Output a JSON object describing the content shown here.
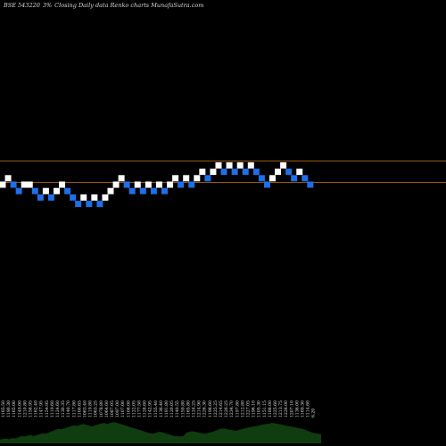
{
  "header": {
    "code": "BSE 543220",
    "box_size": "3%",
    "rest": "Closing Daily data  Renko  charts MunafaSutra.com"
  },
  "colors": {
    "background": "#000000",
    "up_brick": "#ffffff",
    "down_brick": "#1e6fe8",
    "reference_line": "#c8761e",
    "volume": "#0f3d0f"
  },
  "chart_data": {
    "type": "renko",
    "reference_levels": [
      1,
      0
    ],
    "bricks": [
      {
        "dir": "up",
        "level": 0
      },
      {
        "dir": "up",
        "level": 1
      },
      {
        "dir": "down",
        "level": 0
      },
      {
        "dir": "down",
        "level": -1
      },
      {
        "dir": "up",
        "level": 0
      },
      {
        "dir": "up",
        "level": 0
      },
      {
        "dir": "down",
        "level": -1
      },
      {
        "dir": "down",
        "level": -2
      },
      {
        "dir": "up",
        "level": -1
      },
      {
        "dir": "down",
        "level": -2
      },
      {
        "dir": "up",
        "level": -1
      },
      {
        "dir": "up",
        "level": 0
      },
      {
        "dir": "down",
        "level": -1
      },
      {
        "dir": "down",
        "level": -2
      },
      {
        "dir": "down",
        "level": -3
      },
      {
        "dir": "up",
        "level": -2
      },
      {
        "dir": "down",
        "level": -3
      },
      {
        "dir": "up",
        "level": -2
      },
      {
        "dir": "down",
        "level": -3
      },
      {
        "dir": "up",
        "level": -2
      },
      {
        "dir": "up",
        "level": -1
      },
      {
        "dir": "up",
        "level": 0
      },
      {
        "dir": "up",
        "level": 1
      },
      {
        "dir": "down",
        "level": 0
      },
      {
        "dir": "down",
        "level": -1
      },
      {
        "dir": "up",
        "level": 0
      },
      {
        "dir": "down",
        "level": -1
      },
      {
        "dir": "up",
        "level": 0
      },
      {
        "dir": "down",
        "level": -1
      },
      {
        "dir": "up",
        "level": 0
      },
      {
        "dir": "down",
        "level": -1
      },
      {
        "dir": "up",
        "level": 0
      },
      {
        "dir": "up",
        "level": 1
      },
      {
        "dir": "down",
        "level": 0
      },
      {
        "dir": "up",
        "level": 1
      },
      {
        "dir": "down",
        "level": 0
      },
      {
        "dir": "up",
        "level": 1
      },
      {
        "dir": "up",
        "level": 2
      },
      {
        "dir": "down",
        "level": 1
      },
      {
        "dir": "up",
        "level": 2
      },
      {
        "dir": "up",
        "level": 3
      },
      {
        "dir": "down",
        "level": 2
      },
      {
        "dir": "up",
        "level": 3
      },
      {
        "dir": "down",
        "level": 2
      },
      {
        "dir": "up",
        "level": 3
      },
      {
        "dir": "down",
        "level": 2
      },
      {
        "dir": "up",
        "level": 3
      },
      {
        "dir": "down",
        "level": 2
      },
      {
        "dir": "down",
        "level": 1
      },
      {
        "dir": "down",
        "level": 0
      },
      {
        "dir": "up",
        "level": 1
      },
      {
        "dir": "up",
        "level": 2
      },
      {
        "dir": "up",
        "level": 3
      },
      {
        "dir": "down",
        "level": 2
      },
      {
        "dir": "down",
        "level": 1
      },
      {
        "dir": "up",
        "level": 2
      },
      {
        "dir": "down",
        "level": 1
      },
      {
        "dir": "down",
        "level": 0
      }
    ],
    "price_labels": [
      "1165.50",
      "1190.30",
      "1165.00",
      "1149.00",
      "1210.80",
      "1158.95",
      "1162.40",
      "1147.95",
      "1154.95",
      "1119.60",
      "1124.60",
      "1130.35",
      "1140.70",
      "1117.80",
      "1100.65",
      "1063.40",
      "1119.80",
      "1063.25",
      "1078.80",
      "1064.00",
      "1087.05",
      "1097.00",
      "1107.00",
      "1108.00",
      "1122.05",
      "1177.50",
      "1128.60",
      "1142.95",
      "1155.40",
      "1136.40",
      "1191.80",
      "1120.05",
      "1140.55",
      "1159.80",
      "1165.80",
      "1124.25",
      "1214.90",
      "1226.30",
      "1198.60",
      "1225.25",
      "1214.65",
      "1226.25",
      "1234.70",
      "1197.80",
      "1212.80",
      "1227.05",
      "1196.10",
      "1105.30",
      "1151.15",
      "1188.00",
      "1225.60",
      "1213.75",
      "1226.00",
      "1207.10",
      "1136.00",
      "1169.30",
      "1114.60",
      "6.20"
    ],
    "volume": [
      0.15,
      0.18,
      0.2,
      0.17,
      0.22,
      0.2,
      0.25,
      0.3,
      0.28,
      0.32,
      0.35,
      0.3,
      0.34,
      0.38,
      0.42,
      0.4,
      0.45,
      0.5,
      0.55,
      0.6,
      0.58,
      0.62,
      0.66,
      0.7,
      0.75,
      0.72,
      0.76,
      0.8,
      0.78,
      0.74,
      0.7,
      0.74,
      0.78,
      0.82,
      0.85,
      0.8,
      0.84,
      0.88,
      0.86,
      0.82,
      0.78,
      0.74,
      0.7,
      0.66,
      0.62,
      0.58,
      0.54,
      0.5,
      0.46,
      0.42,
      0.4,
      0.44,
      0.48,
      0.46,
      0.42,
      0.38,
      0.34,
      0.3,
      0.3,
      0.28,
      0.3,
      0.45,
      0.48,
      0.5,
      0.47,
      0.45,
      0.42,
      0.4,
      0.43,
      0.46,
      0.5,
      0.55,
      0.6,
      0.62,
      0.6,
      0.57,
      0.55,
      0.52,
      0.55,
      0.58,
      0.62,
      0.65,
      0.68,
      0.7,
      0.72,
      0.75,
      0.78,
      0.8,
      0.82,
      0.85,
      0.83,
      0.8,
      0.78,
      0.75,
      0.72,
      0.7,
      0.68,
      0.65,
      0.62,
      0.6,
      0.55,
      0.5,
      0.45,
      0.42,
      0.4,
      0.38
    ]
  }
}
